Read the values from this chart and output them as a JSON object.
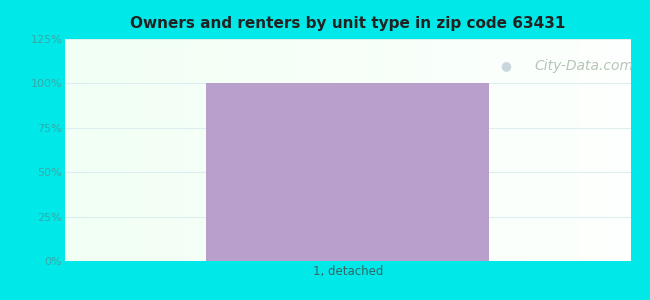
{
  "title": "Owners and renters by unit type in zip code 63431",
  "title_fontsize": 11,
  "title_fontweight": "bold",
  "categories": [
    "1, detached"
  ],
  "values": [
    100
  ],
  "bar_color": "#b89fcc",
  "bar_width": 0.5,
  "ylim": [
    0,
    125
  ],
  "yticks": [
    0,
    25,
    50,
    75,
    100,
    125
  ],
  "ytick_labels": [
    "0%",
    "25%",
    "50%",
    "75%",
    "100%",
    "125%"
  ],
  "bg_outer_color": "#00e8e8",
  "watermark": "City-Data.com",
  "watermark_color": "#aabbaa",
  "watermark_fontsize": 10,
  "gridline_color": "#ddeeee",
  "tick_label_color": "#33aaaa",
  "xlabel_color": "#336666",
  "figsize": [
    6.5,
    3.0
  ],
  "dpi": 100
}
